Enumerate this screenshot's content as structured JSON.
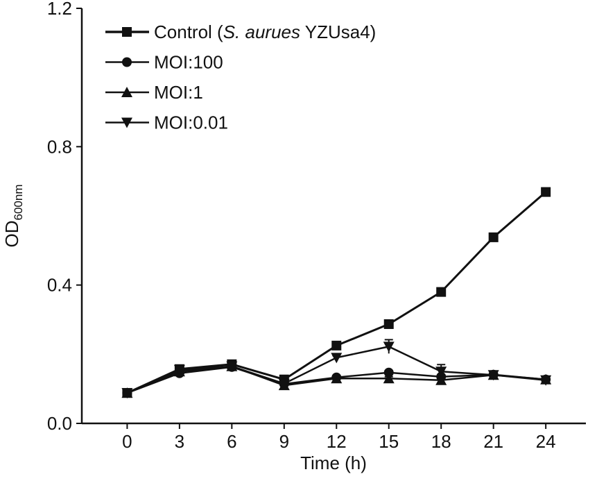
{
  "chart_data": {
    "type": "line",
    "title": "",
    "xlabel": "Time (h)",
    "ylabel": "OD",
    "ylabel_sub": "600nm",
    "xlim": [
      -2.6,
      26.3
    ],
    "ylim": [
      0,
      1.2
    ],
    "xticks": [
      0,
      3,
      6,
      9,
      12,
      15,
      18,
      21,
      24
    ],
    "yticks": [
      "0.0",
      "0.4",
      "0.8",
      "1.2"
    ],
    "ytick_values": [
      0,
      0.4,
      0.8,
      1.2
    ],
    "grid": false,
    "legend_position": "top-left",
    "x": [
      0,
      3,
      6,
      9,
      12,
      15,
      18,
      21,
      24
    ],
    "series": [
      {
        "name": "Control (S. aurues YZUsa4)",
        "name_parts": [
          "Control (",
          "S. aurues",
          " YZUsa4)"
        ],
        "marker": "square",
        "values": [
          0.088,
          0.157,
          0.171,
          0.127,
          0.225,
          0.287,
          0.38,
          0.538,
          0.669
        ],
        "errors": [
          0.005,
          0.006,
          0.006,
          0.005,
          0.006,
          0.006,
          0.007,
          0.007,
          0.007
        ]
      },
      {
        "name": "MOI:100",
        "marker": "circle",
        "values": [
          0.088,
          0.145,
          0.163,
          0.114,
          0.133,
          0.147,
          0.135,
          0.141,
          0.127
        ],
        "errors": [
          0.004,
          0.005,
          0.005,
          0.004,
          0.005,
          0.005,
          0.005,
          0.005,
          0.005
        ]
      },
      {
        "name": "MOI:1",
        "marker": "triangle-up",
        "values": [
          0.088,
          0.15,
          0.165,
          0.11,
          0.13,
          0.13,
          0.125,
          0.14,
          0.127
        ],
        "errors": [
          0.004,
          0.005,
          0.005,
          0.004,
          0.005,
          0.005,
          0.005,
          0.005,
          0.005
        ]
      },
      {
        "name": "MOI:0.01",
        "marker": "triangle-down",
        "values": [
          0.088,
          0.155,
          0.165,
          0.115,
          0.19,
          0.222,
          0.15,
          0.14,
          0.125
        ],
        "errors": [
          0.004,
          0.005,
          0.005,
          0.004,
          0.006,
          0.02,
          0.02,
          0.005,
          0.005
        ]
      }
    ]
  }
}
